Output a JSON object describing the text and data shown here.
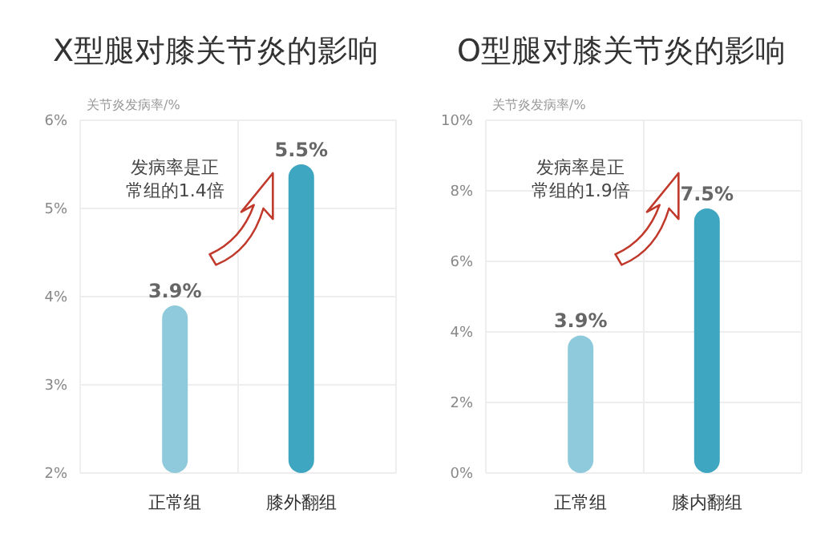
{
  "chart_data": [
    {
      "type": "bar",
      "title": "X型腿对膝关节炎的影响",
      "ylabel": "关节炎发病率/%",
      "categories": [
        "正常组",
        "膝外翻组"
      ],
      "values": [
        3.9,
        5.5
      ],
      "colors": [
        "#8ecadb",
        "#3fa6c1"
      ],
      "value_labels": [
        "3.9%",
        "5.5%"
      ],
      "ylim": [
        2,
        6
      ],
      "yticks": [
        {
          "value": 2,
          "label": "2%"
        },
        {
          "value": 3,
          "label": "3%"
        },
        {
          "value": 4,
          "label": "4%"
        },
        {
          "value": 5,
          "label": "5%"
        },
        {
          "value": 6,
          "label": "6%"
        }
      ],
      "grid": true,
      "annotations": [
        "发病率是正常组的1.4倍"
      ]
    },
    {
      "type": "bar",
      "title": "O型腿对膝关节炎的影响",
      "ylabel": "关节炎发病率/%",
      "categories": [
        "正常组",
        "膝内翻组"
      ],
      "values": [
        3.9,
        7.5
      ],
      "colors": [
        "#8ecadb",
        "#3fa6c1"
      ],
      "value_labels": [
        "3.9%",
        "7.5%"
      ],
      "ylim": [
        0,
        10
      ],
      "yticks": [
        {
          "value": 0,
          "label": "0%"
        },
        {
          "value": 2,
          "label": "2%"
        },
        {
          "value": 4,
          "label": "4%"
        },
        {
          "value": 6,
          "label": "6%"
        },
        {
          "value": 8,
          "label": "8%"
        },
        {
          "value": 10,
          "label": "10%"
        }
      ],
      "grid": true,
      "annotations": [
        "发病率是正常组的1.9倍"
      ]
    }
  ]
}
